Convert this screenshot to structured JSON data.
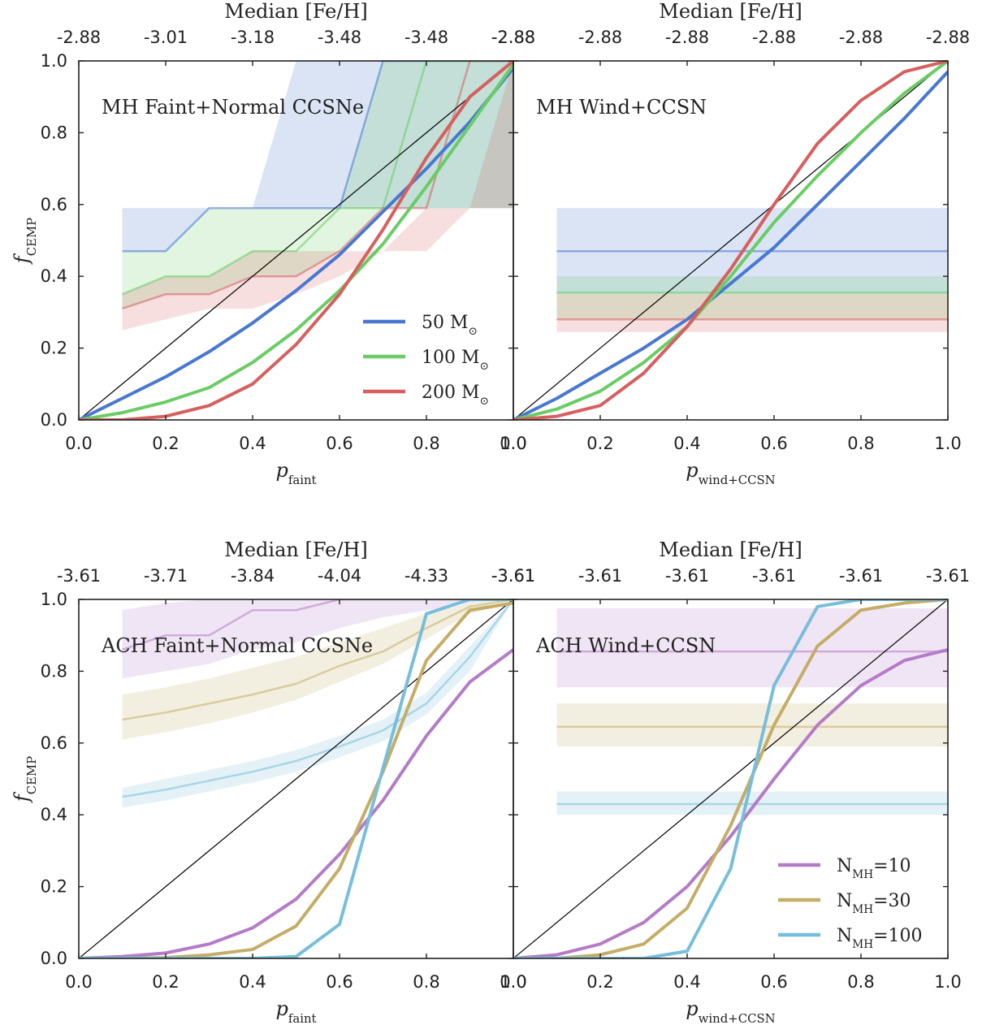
{
  "chart_data": [
    {
      "type": "line",
      "panel": "top-left",
      "annotation": "MH Faint+Normal CCSNe",
      "xlabel": "p",
      "xlabel_sub": "faint",
      "ylabel": "f",
      "ylabel_sub": "CEMP",
      "xlim": [
        0,
        1
      ],
      "ylim": [
        0,
        1
      ],
      "x_ticks": [
        "0.0",
        "0.2",
        "0.4",
        "0.6",
        "0.8",
        "1.0"
      ],
      "y_ticks": [
        "0.0",
        "0.2",
        "0.4",
        "0.6",
        "0.8",
        "1.0"
      ],
      "top_axis_label": "Median [Fe/H]",
      "top_ticks": [
        "-2.88",
        "-3.01",
        "-3.18",
        "-3.48",
        "-3.48",
        "-2.88"
      ],
      "x": [
        0.0,
        0.1,
        0.2,
        0.3,
        0.4,
        0.5,
        0.6,
        0.7,
        0.8,
        0.9,
        1.0
      ],
      "series": [
        {
          "name": "50 M",
          "name_sub": "⊙",
          "color": "#4878cf",
          "values": [
            0.0,
            0.06,
            0.12,
            0.19,
            0.27,
            0.36,
            0.46,
            0.58,
            0.7,
            0.83,
            0.98
          ],
          "band_x": [
            0.1,
            0.2,
            0.3,
            0.4,
            0.5,
            0.6,
            0.7,
            0.8,
            0.9,
            1.0
          ],
          "median": [
            0.47,
            0.47,
            0.59,
            0.59,
            0.59,
            0.59,
            1.0,
            1.0,
            1.0,
            1.0
          ],
          "lower": [
            0.47,
            0.47,
            0.59,
            0.59,
            0.59,
            0.59,
            0.59,
            0.59,
            0.59,
            0.59
          ],
          "upper": [
            0.59,
            0.59,
            0.59,
            0.59,
            1.0,
            1.0,
            1.0,
            1.0,
            1.0,
            1.0
          ]
        },
        {
          "name": "100 M",
          "name_sub": "⊙",
          "color": "#6acc65",
          "values": [
            0.0,
            0.02,
            0.05,
            0.09,
            0.16,
            0.25,
            0.36,
            0.49,
            0.65,
            0.82,
            0.99
          ],
          "band_x": [
            0.1,
            0.2,
            0.3,
            0.4,
            0.5,
            0.6,
            0.7,
            0.8,
            0.9,
            1.0
          ],
          "median": [
            0.35,
            0.4,
            0.4,
            0.47,
            0.47,
            0.59,
            0.59,
            1.0,
            1.0,
            1.0
          ],
          "lower": [
            0.31,
            0.35,
            0.35,
            0.4,
            0.4,
            0.47,
            0.59,
            0.59,
            0.59,
            0.59
          ],
          "upper": [
            0.47,
            0.47,
            0.59,
            0.59,
            0.59,
            0.59,
            1.0,
            1.0,
            1.0,
            1.0
          ]
        },
        {
          "name": "200 M",
          "name_sub": "⊙",
          "color": "#d65f5f",
          "values": [
            0.0,
            0.0,
            0.01,
            0.04,
            0.1,
            0.21,
            0.35,
            0.53,
            0.73,
            0.9,
            1.0
          ],
          "band_x": [
            0.1,
            0.2,
            0.3,
            0.4,
            0.5,
            0.6,
            0.7,
            0.8,
            0.9,
            1.0
          ],
          "median": [
            0.31,
            0.35,
            0.35,
            0.4,
            0.4,
            0.47,
            0.59,
            0.59,
            1.0,
            1.0
          ],
          "lower": [
            0.25,
            0.28,
            0.31,
            0.31,
            0.35,
            0.4,
            0.47,
            0.47,
            0.59,
            0.59
          ],
          "upper": [
            0.35,
            0.4,
            0.4,
            0.47,
            0.47,
            0.47,
            0.47,
            0.59,
            0.59,
            1.0
          ]
        }
      ]
    },
    {
      "type": "line",
      "panel": "top-right",
      "annotation": "MH Wind+CCSN",
      "xlabel": "p",
      "xlabel_sub": "wind+CCSN",
      "xlim": [
        0,
        1
      ],
      "ylim": [
        0,
        1
      ],
      "x_ticks": [
        "0.0",
        "0.2",
        "0.4",
        "0.6",
        "0.8",
        "1.0"
      ],
      "top_axis_label": "Median [Fe/H]",
      "top_ticks": [
        "-2.88",
        "-2.88",
        "-2.88",
        "-2.88",
        "-2.88",
        "-2.88"
      ],
      "x": [
        0.0,
        0.1,
        0.2,
        0.3,
        0.4,
        0.5,
        0.6,
        0.7,
        0.8,
        0.9,
        1.0
      ],
      "series": [
        {
          "name": "50 M",
          "color": "#4878cf",
          "values": [
            0.0,
            0.06,
            0.13,
            0.2,
            0.28,
            0.38,
            0.48,
            0.6,
            0.72,
            0.84,
            0.97
          ],
          "band_x": [
            0.1,
            1.0
          ],
          "median": [
            0.47,
            0.47
          ],
          "lower": [
            0.35,
            0.35
          ],
          "upper": [
            0.59,
            0.59
          ]
        },
        {
          "name": "100 M",
          "color": "#6acc65",
          "values": [
            0.0,
            0.03,
            0.08,
            0.16,
            0.26,
            0.4,
            0.55,
            0.68,
            0.8,
            0.91,
            1.0
          ],
          "band_x": [
            0.1,
            1.0
          ],
          "median": [
            0.355,
            0.355
          ],
          "lower": [
            0.28,
            0.28
          ],
          "upper": [
            0.4,
            0.4
          ]
        },
        {
          "name": "200 M",
          "color": "#d65f5f",
          "values": [
            0.0,
            0.01,
            0.04,
            0.13,
            0.26,
            0.42,
            0.6,
            0.77,
            0.89,
            0.97,
            1.0
          ],
          "band_x": [
            0.1,
            1.0
          ],
          "median": [
            0.28,
            0.28
          ],
          "lower": [
            0.245,
            0.245
          ],
          "upper": [
            0.35,
            0.35
          ]
        }
      ]
    },
    {
      "type": "line",
      "panel": "bottom-left",
      "annotation": "ACH Faint+Normal CCSNe",
      "xlabel": "p",
      "xlabel_sub": "faint",
      "ylabel": "f",
      "ylabel_sub": "CEMP",
      "xlim": [
        0,
        1
      ],
      "ylim": [
        0,
        1
      ],
      "x_ticks": [
        "0.0",
        "0.2",
        "0.4",
        "0.6",
        "0.8",
        "1.0"
      ],
      "y_ticks": [
        "0.0",
        "0.2",
        "0.4",
        "0.6",
        "0.8",
        "1.0"
      ],
      "top_axis_label": "Median [Fe/H]",
      "top_ticks": [
        "-3.61",
        "-3.71",
        "-3.84",
        "-4.04",
        "-4.33",
        "-3.61"
      ],
      "x": [
        0.0,
        0.1,
        0.2,
        0.3,
        0.4,
        0.5,
        0.6,
        0.7,
        0.8,
        0.9,
        1.0
      ],
      "series": [
        {
          "name": "N",
          "name_sub": "MH",
          "name_suffix": "=10",
          "color": "#b47cc7",
          "values": [
            0.0,
            0.005,
            0.015,
            0.04,
            0.085,
            0.165,
            0.29,
            0.44,
            0.62,
            0.77,
            0.86
          ],
          "band_x": [
            0.1,
            0.2,
            0.3,
            0.4,
            0.5,
            0.6,
            0.7,
            0.8,
            0.9,
            1.0
          ],
          "median": [
            0.86,
            0.9,
            0.9,
            0.97,
            0.97,
            1.0,
            1.0,
            1.0,
            1.0,
            1.0
          ],
          "lower": [
            0.78,
            0.8,
            0.82,
            0.86,
            0.88,
            0.92,
            0.95,
            0.97,
            0.99,
            1.0
          ],
          "upper": [
            0.97,
            0.99,
            1.0,
            1.0,
            1.0,
            1.0,
            1.0,
            1.0,
            1.0,
            1.0
          ]
        },
        {
          "name": "N",
          "name_sub": "MH",
          "name_suffix": "=30",
          "color": "#c4ad66",
          "values": [
            0.0,
            0.0,
            0.002,
            0.01,
            0.025,
            0.09,
            0.25,
            0.52,
            0.83,
            0.97,
            0.99
          ],
          "band_x": [
            0.1,
            0.2,
            0.3,
            0.4,
            0.5,
            0.6,
            0.7,
            0.8,
            0.9,
            1.0
          ],
          "median": [
            0.665,
            0.685,
            0.71,
            0.735,
            0.765,
            0.815,
            0.855,
            0.92,
            0.98,
            1.0
          ],
          "lower": [
            0.61,
            0.63,
            0.655,
            0.685,
            0.72,
            0.77,
            0.82,
            0.89,
            0.96,
            0.99
          ],
          "upper": [
            0.735,
            0.755,
            0.78,
            0.81,
            0.84,
            0.88,
            0.92,
            0.96,
            0.99,
            1.0
          ]
        },
        {
          "name": "N",
          "name_sub": "MH",
          "name_suffix": "=100",
          "color": "#77bedb",
          "values": [
            0.0,
            0.0,
            0.0,
            0.0,
            0.0,
            0.005,
            0.095,
            0.53,
            0.96,
            1.0,
            1.0
          ],
          "band_x": [
            0.1,
            0.2,
            0.3,
            0.4,
            0.5,
            0.6,
            0.7,
            0.8,
            0.9,
            1.0
          ],
          "median": [
            0.45,
            0.47,
            0.495,
            0.52,
            0.55,
            0.59,
            0.635,
            0.71,
            0.84,
            1.0
          ],
          "lower": [
            0.42,
            0.44,
            0.465,
            0.49,
            0.52,
            0.56,
            0.605,
            0.68,
            0.8,
            1.0
          ],
          "upper": [
            0.475,
            0.5,
            0.525,
            0.55,
            0.58,
            0.62,
            0.665,
            0.74,
            0.87,
            1.0
          ]
        }
      ]
    },
    {
      "type": "line",
      "panel": "bottom-right",
      "annotation": "ACH Wind+CCSN",
      "xlabel": "p",
      "xlabel_sub": "wind+CCSN",
      "xlim": [
        0,
        1
      ],
      "ylim": [
        0,
        1
      ],
      "x_ticks": [
        "0.0",
        "0.2",
        "0.4",
        "0.6",
        "0.8",
        "1.0"
      ],
      "top_axis_label": "Median [Fe/H]",
      "top_ticks": [
        "-3.61",
        "-3.61",
        "-3.61",
        "-3.61",
        "-3.61",
        "-3.61"
      ],
      "x": [
        0.0,
        0.1,
        0.2,
        0.3,
        0.4,
        0.5,
        0.6,
        0.7,
        0.8,
        0.9,
        1.0
      ],
      "series": [
        {
          "name": "N",
          "name_sub": "MH",
          "name_suffix": "=10",
          "color": "#b47cc7",
          "values": [
            0.0,
            0.01,
            0.04,
            0.1,
            0.2,
            0.34,
            0.5,
            0.65,
            0.76,
            0.83,
            0.86
          ],
          "band_x": [
            0.1,
            1.0
          ],
          "median": [
            0.855,
            0.855
          ],
          "lower": [
            0.755,
            0.755
          ],
          "upper": [
            0.975,
            0.975
          ]
        },
        {
          "name": "N",
          "name_sub": "MH",
          "name_suffix": "=30",
          "color": "#c4ad66",
          "values": [
            0.0,
            0.0,
            0.01,
            0.04,
            0.14,
            0.37,
            0.65,
            0.87,
            0.97,
            0.99,
            1.0
          ],
          "band_x": [
            0.1,
            1.0
          ],
          "median": [
            0.645,
            0.645
          ],
          "lower": [
            0.59,
            0.59
          ],
          "upper": [
            0.71,
            0.71
          ]
        },
        {
          "name": "N",
          "name_sub": "MH",
          "name_suffix": "=100",
          "color": "#77bedb",
          "values": [
            0.0,
            0.0,
            0.0,
            0.0,
            0.02,
            0.25,
            0.76,
            0.98,
            1.0,
            1.0,
            1.0
          ],
          "band_x": [
            0.1,
            1.0
          ],
          "median": [
            0.43,
            0.43
          ],
          "lower": [
            0.4,
            0.4
          ],
          "upper": [
            0.465,
            0.465
          ]
        }
      ]
    }
  ]
}
